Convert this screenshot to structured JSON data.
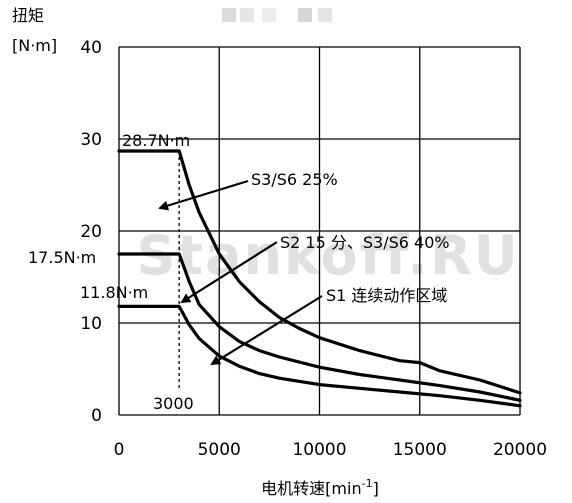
{
  "chart_data": {
    "type": "line",
    "ylabel_line1": "扭矩",
    "ylabel_line2": "[N·m]",
    "xlabel_main": "电机转速[min",
    "xlabel_sup": "-1",
    "xlabel_close": "]",
    "xlim": [
      0,
      20000
    ],
    "ylim": [
      0,
      40
    ],
    "x_ticks": [
      0,
      5000,
      10000,
      15000,
      20000
    ],
    "x_tick_labels": [
      "0",
      "5000",
      "10000",
      "15000",
      "20000"
    ],
    "y_ticks": [
      0,
      10,
      20,
      30,
      40
    ],
    "y_tick_labels": [
      "0",
      "10",
      "20",
      "30",
      "40"
    ],
    "grid": true,
    "series": [
      {
        "name": "S3/S6 25%",
        "x": [
          0,
          3000,
          3500,
          4000,
          5000,
          6000,
          7000,
          8000,
          9000,
          10000,
          12000,
          14000,
          15000,
          16000,
          18000,
          20000
        ],
        "y": [
          28.7,
          28.7,
          25.0,
          22.0,
          17.5,
          14.5,
          12.3,
          10.6,
          9.4,
          8.4,
          7.0,
          5.9,
          5.7,
          4.8,
          3.8,
          2.4
        ]
      },
      {
        "name": "S2 15 分、S3/S6 40%",
        "x": [
          0,
          3000,
          3500,
          4000,
          5000,
          6000,
          7000,
          8000,
          10000,
          12000,
          14000,
          16000,
          18000,
          20000
        ],
        "y": [
          17.5,
          17.5,
          14.5,
          12.0,
          9.6,
          8.0,
          7.0,
          6.3,
          5.2,
          4.4,
          3.8,
          3.2,
          2.5,
          1.6
        ]
      },
      {
        "name": "S1 连续动作区域",
        "x": [
          0,
          3000,
          3500,
          4000,
          5000,
          6000,
          7000,
          8000,
          10000,
          12000,
          14000,
          16000,
          18000,
          20000
        ],
        "y": [
          11.8,
          11.8,
          9.8,
          8.3,
          6.4,
          5.3,
          4.5,
          4.0,
          3.3,
          2.9,
          2.5,
          2.1,
          1.6,
          1.0
        ]
      }
    ],
    "annotations": {
      "value_s3": "28.7N·m",
      "value_s2": "17.5N·m",
      "value_s1": "11.8N·m",
      "label_s3": "S3/S6 25%",
      "label_s2": "S2 15 分、S3/S6 40%",
      "label_s1": "S1 连续动作区域",
      "base_speed": "3000",
      "base_speed_value": 3000
    },
    "watermark": "Stankoff.RU"
  }
}
